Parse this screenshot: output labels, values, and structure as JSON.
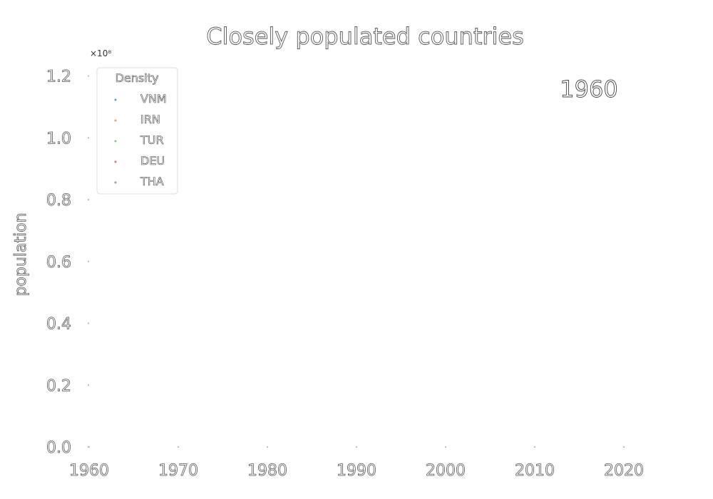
{
  "chart_data": {
    "type": "scatter",
    "title": "Closely populated countries",
    "xlabel": "",
    "ylabel": "population",
    "y_offset_label": "×10⁸",
    "annotation": "1960",
    "xlim": [
      1960,
      2022
    ],
    "ylim": [
      0,
      1.25
    ],
    "x_ticks": [
      1960,
      1970,
      1980,
      1990,
      2000,
      2010,
      2020
    ],
    "y_ticks": [
      0.0,
      0.2,
      0.4,
      0.6,
      0.8,
      1.0,
      1.2
    ],
    "y_tick_labels": [
      "0.0",
      "0.2",
      "0.4",
      "0.6",
      "0.8",
      "1.0",
      "1.2"
    ],
    "grid": false,
    "legend": {
      "title": "Density",
      "placement": "top-left",
      "entries": [
        {
          "label": "VNM",
          "color": "#5b9bd5"
        },
        {
          "label": "IRN",
          "color": "#f0a050"
        },
        {
          "label": "TUR",
          "color": "#7ccd7c"
        },
        {
          "label": "DEU",
          "color": "#e07070"
        },
        {
          "label": "THA",
          "color": "#a08cc8"
        }
      ]
    },
    "series": [
      {
        "name": "VNM",
        "x": [],
        "y": []
      },
      {
        "name": "IRN",
        "x": [],
        "y": []
      },
      {
        "name": "TUR",
        "x": [],
        "y": []
      },
      {
        "name": "DEU",
        "x": [],
        "y": []
      },
      {
        "name": "THA",
        "x": [],
        "y": []
      }
    ]
  }
}
